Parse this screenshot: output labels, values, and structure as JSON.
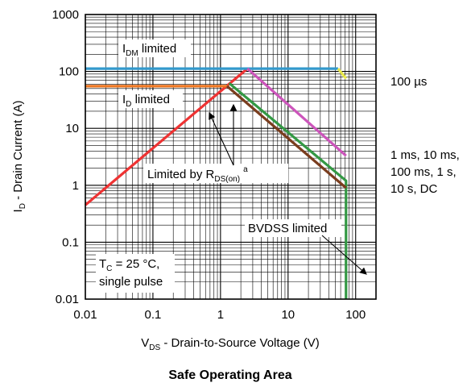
{
  "chart_data": {
    "type": "line",
    "title": "Safe Operating Area",
    "xlabel": {
      "main": "V",
      "sub": "DS",
      "rest": " - Drain-to-Source Voltage (V)"
    },
    "ylabel": {
      "main": "I",
      "sub": "D",
      "rest": " - Drain Current (A)"
    },
    "xscale": "log",
    "yscale": "log",
    "xlim": [
      0.01,
      200
    ],
    "ylim": [
      0.01,
      1000
    ],
    "xticks": [
      0.01,
      0.1,
      1,
      10,
      100
    ],
    "xtick_labels": [
      "0.01",
      "0.1",
      "1",
      "10",
      "100"
    ],
    "yticks": [
      0.01,
      0.1,
      1,
      10,
      100,
      1000
    ],
    "ytick_labels": [
      "0.01",
      "0.1",
      "1",
      "10",
      "100",
      "1000"
    ],
    "grid": true,
    "series": [
      {
        "color": "#ee3333",
        "x": [
          0.01,
          2.5
        ],
        "y": [
          0.45,
          112
        ]
      },
      {
        "color": "#3399cc",
        "x": [
          0.01,
          55
        ],
        "y": [
          112,
          112
        ]
      },
      {
        "color": "#ee7722",
        "x": [
          0.01,
          1.3
        ],
        "y": [
          55,
          55
        ]
      },
      {
        "color": "#cc55bb",
        "x": [
          2.5,
          72
        ],
        "y": [
          112,
          3.3
        ]
      },
      {
        "color": "#339944",
        "x": [
          1.35,
          72,
          72
        ],
        "y": [
          62,
          1.2,
          0.01
        ]
      },
      {
        "color": "#7a3d1e",
        "x": [
          1.25,
          72
        ],
        "y": [
          55,
          0.9
        ]
      },
      {
        "color": "#e8e84a",
        "x": [
          55,
          72
        ],
        "y": [
          112,
          75
        ]
      }
    ],
    "annotations": {
      "idm": {
        "main": "I",
        "sub": "DM",
        "rest": " limited"
      },
      "id": {
        "main": "I",
        "sub": "D",
        "rest": " limited"
      },
      "rdson": {
        "main": "Limited by R",
        "sub": "DS(on)",
        "sup": "a"
      },
      "t100us": "100 µs",
      "dc_lines": [
        "1 ms, 10 ms,",
        "100 ms, 1 s,",
        "10 s, DC"
      ],
      "bvdss": "BVDSS limited",
      "tc": {
        "main": "T",
        "sub": "C",
        "rest": " = 25 °C,"
      },
      "pulse": "single pulse"
    }
  }
}
